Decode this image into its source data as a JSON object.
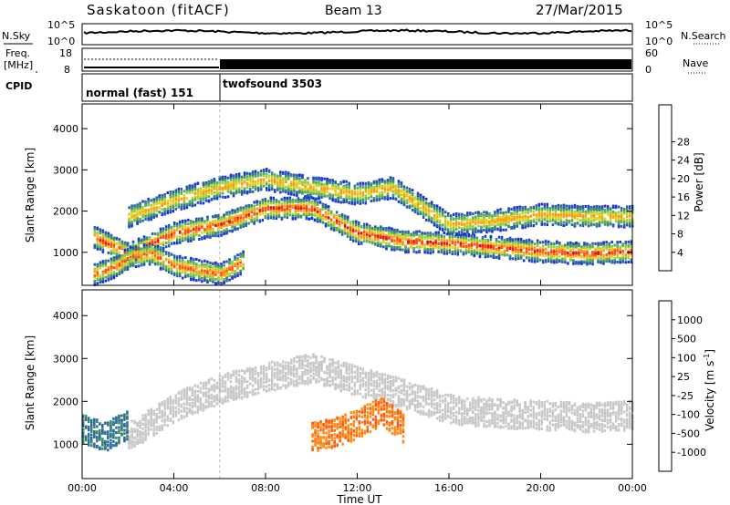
{
  "header": {
    "station": "Saskatoon (fitACF)",
    "beam": "Beam 13",
    "date": "27/Mar/2015"
  },
  "status_panels": {
    "nsky_label": "N.Sky",
    "nsky_ticks": [
      "10^5",
      "10^0"
    ],
    "nsearch_label": "N.Search",
    "nsearch_ticks": [
      "10^5",
      "10^0"
    ],
    "freq_label": "Freq.",
    "freq_unit": "[MHz]",
    "freq_ticks": [
      "18",
      "8"
    ],
    "nave_label": "Nave",
    "nave_ticks": [
      "60",
      "0"
    ],
    "cpid_label": "CPID",
    "cpid_modes": [
      {
        "name": "normal (fast) 151",
        "start_hour": 0,
        "end_hour": 6
      },
      {
        "name": "twofsound 3503",
        "start_hour": 6,
        "end_hour": 24
      }
    ]
  },
  "chart_data": [
    {
      "type": "heatmap",
      "panel": "power",
      "ylabel": "Slant Range [km]",
      "yticks": [
        "1000",
        "2000",
        "3000",
        "4000"
      ],
      "ylim": [
        200,
        4600
      ],
      "xlim": [
        0,
        24
      ],
      "colorbar": {
        "label": "Power [dB]",
        "ticks": [
          "4",
          "8",
          "12",
          "16",
          "20",
          "24",
          "28"
        ],
        "range": [
          0,
          32
        ],
        "colors": [
          "#1530e0",
          "#2a5ab0",
          "#3d8a72",
          "#5aae5a",
          "#9ad23c",
          "#e8d020",
          "#ff9a10",
          "#ff5010",
          "#e01010"
        ]
      },
      "bands": [
        {
          "name": "lower",
          "x": [
            0.5,
            2,
            4,
            6,
            8,
            10,
            12,
            14,
            16,
            18,
            20,
            22,
            24
          ],
          "y": [
            1400,
            1000,
            1500,
            1700,
            2100,
            2100,
            1500,
            1300,
            1250,
            1150,
            1050,
            1000,
            1050
          ],
          "peak_db": 28
        },
        {
          "name": "upper",
          "x": [
            2,
            4,
            6,
            8,
            10,
            12,
            13.5,
            16,
            18,
            20,
            22,
            24
          ],
          "y": [
            1900,
            2300,
            2600,
            2800,
            2600,
            2450,
            2600,
            1700,
            1800,
            1950,
            1900,
            1900
          ],
          "peak_db": 22
        },
        {
          "name": "near",
          "x": [
            0.5,
            1.5,
            2,
            3,
            4,
            5,
            6,
            7
          ],
          "y": [
            500,
            700,
            900,
            1000,
            700,
            600,
            500,
            800
          ],
          "peak_db": 26
        }
      ]
    },
    {
      "type": "heatmap",
      "panel": "velocity",
      "ylabel": "Slant Range [km]",
      "yticks": [
        "1000",
        "2000",
        "3000",
        "4000"
      ],
      "ylim": [
        200,
        4600
      ],
      "xlim": [
        0,
        24
      ],
      "xticks": [
        "00:00",
        "04:00",
        "08:00",
        "12:00",
        "16:00",
        "20:00",
        "00:00"
      ],
      "xlabel": "Time UT",
      "colorbar": {
        "label": "Velocity [m s",
        "label_sup": "-1",
        "ticks": [
          "1000",
          "500",
          "100",
          "25",
          "-25",
          "-100",
          "-500",
          "-1000"
        ],
        "colors": [
          "#2040b0",
          "#2a6aa0",
          "#3a8a5a",
          "#58b040",
          "#c8c8c8",
          "#e8c020",
          "#ff8c10",
          "#ff5a10",
          "#e01010"
        ]
      },
      "regions": [
        {
          "name": "ground-scatter",
          "x": [
            2,
            4,
            6,
            8,
            10,
            12,
            14,
            16,
            18,
            20,
            22,
            24
          ],
          "y": [
            1200,
            1900,
            2300,
            2600,
            2800,
            2500,
            2200,
            1850,
            1750,
            1700,
            1650,
            1700
          ],
          "velocity": 0
        },
        {
          "name": "westward-flow",
          "x": [
            10,
            11,
            12,
            13,
            14
          ],
          "y": [
            1200,
            1300,
            1500,
            1800,
            1400
          ],
          "velocity": -500
        },
        {
          "name": "eastward-flow",
          "x": [
            0,
            1,
            2
          ],
          "y": [
            1400,
            1200,
            1500
          ],
          "velocity": 500
        }
      ]
    }
  ]
}
